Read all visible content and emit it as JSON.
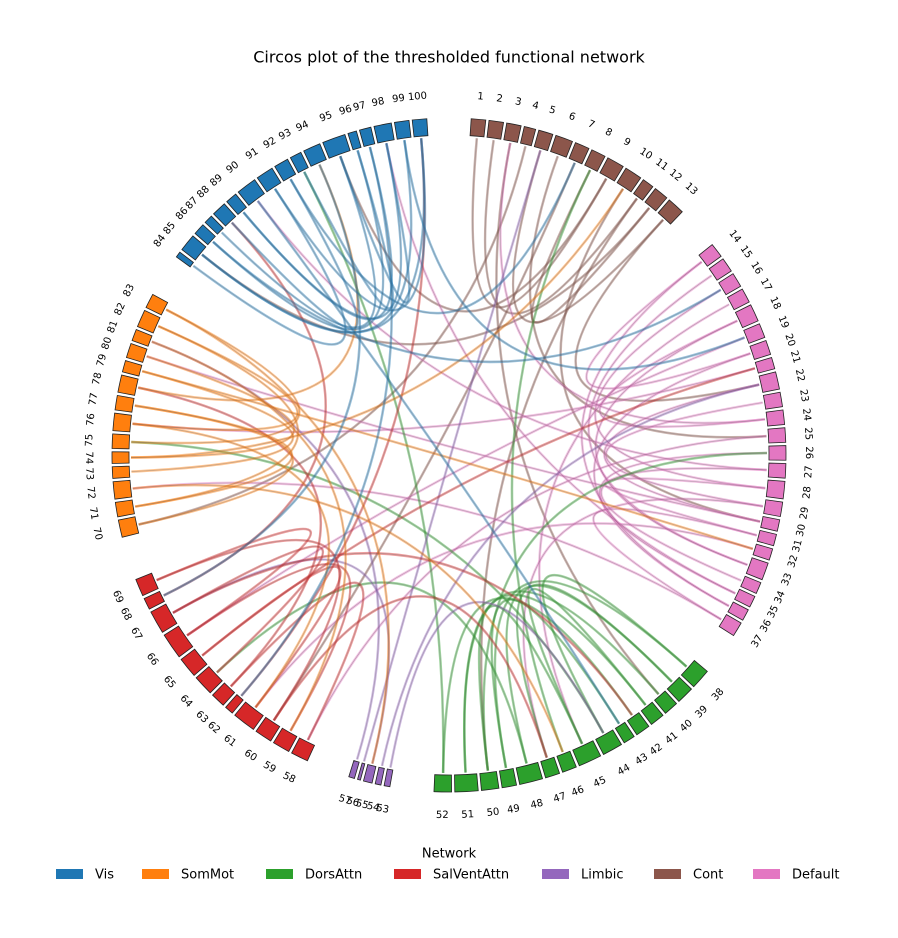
{
  "chart_data": {
    "type": "chord",
    "title": "Circos plot of the thresholded functional network",
    "legend_title": "Network",
    "networks": [
      {
        "name": "Vis",
        "color": "#1f77b4"
      },
      {
        "name": "SomMot",
        "color": "#ff7f0e"
      },
      {
        "name": "DorsAttn",
        "color": "#2ca02c"
      },
      {
        "name": "SalVentAttn",
        "color": "#d62728"
      },
      {
        "name": "Limbic",
        "color": "#9467bd"
      },
      {
        "name": "Cont",
        "color": "#8c564b"
      },
      {
        "name": "Default",
        "color": "#e377c2"
      }
    ],
    "nodes": [
      {
        "label": "1",
        "network": "Cont",
        "degree": 5
      },
      {
        "label": "2",
        "network": "Cont",
        "degree": 5
      },
      {
        "label": "3",
        "network": "Cont",
        "degree": 5
      },
      {
        "label": "4",
        "network": "Cont",
        "degree": 4
      },
      {
        "label": "5",
        "network": "Cont",
        "degree": 5
      },
      {
        "label": "6",
        "network": "Cont",
        "degree": 6
      },
      {
        "label": "7",
        "network": "Cont",
        "degree": 5
      },
      {
        "label": "8",
        "network": "Cont",
        "degree": 5
      },
      {
        "label": "9",
        "network": "Cont",
        "degree": 6
      },
      {
        "label": "10",
        "network": "Cont",
        "degree": 6
      },
      {
        "label": "11",
        "network": "Cont",
        "degree": 4
      },
      {
        "label": "12",
        "network": "Cont",
        "degree": 5
      },
      {
        "label": "13",
        "network": "Cont",
        "degree": 6
      },
      {
        "label": "14",
        "network": "Default",
        "degree": 5
      },
      {
        "label": "15",
        "network": "Default",
        "degree": 5
      },
      {
        "label": "16",
        "network": "Default",
        "degree": 5
      },
      {
        "label": "17",
        "network": "Default",
        "degree": 5
      },
      {
        "label": "18",
        "network": "Default",
        "degree": 6
      },
      {
        "label": "19",
        "network": "Default",
        "degree": 5
      },
      {
        "label": "20",
        "network": "Default",
        "degree": 5
      },
      {
        "label": "21",
        "network": "Default",
        "degree": 4
      },
      {
        "label": "22",
        "network": "Default",
        "degree": 6
      },
      {
        "label": "23",
        "network": "Default",
        "degree": 5
      },
      {
        "label": "24",
        "network": "Default",
        "degree": 5
      },
      {
        "label": "25",
        "network": "Default",
        "degree": 5
      },
      {
        "label": "26",
        "network": "Default",
        "degree": 5
      },
      {
        "label": "27",
        "network": "Default",
        "degree": 5
      },
      {
        "label": "28",
        "network": "Default",
        "degree": 6
      },
      {
        "label": "29",
        "network": "Default",
        "degree": 5
      },
      {
        "label": "30",
        "network": "Default",
        "degree": 4
      },
      {
        "label": "31",
        "network": "Default",
        "degree": 4
      },
      {
        "label": "32",
        "network": "Default",
        "degree": 4
      },
      {
        "label": "33",
        "network": "Default",
        "degree": 6
      },
      {
        "label": "34",
        "network": "Default",
        "degree": 4
      },
      {
        "label": "35",
        "network": "Default",
        "degree": 4
      },
      {
        "label": "36",
        "network": "Default",
        "degree": 4
      },
      {
        "label": "37",
        "network": "Default",
        "degree": 5
      },
      {
        "label": "38",
        "network": "DorsAttn",
        "degree": 7
      },
      {
        "label": "39",
        "network": "DorsAttn",
        "degree": 6
      },
      {
        "label": "40",
        "network": "DorsAttn",
        "degree": 5
      },
      {
        "label": "41",
        "network": "DorsAttn",
        "degree": 5
      },
      {
        "label": "42",
        "network": "DorsAttn",
        "degree": 5
      },
      {
        "label": "43",
        "network": "DorsAttn",
        "degree": 4
      },
      {
        "label": "44",
        "network": "DorsAttn",
        "degree": 7
      },
      {
        "label": "45",
        "network": "DorsAttn",
        "degree": 8
      },
      {
        "label": "46",
        "network": "DorsAttn",
        "degree": 5
      },
      {
        "label": "47",
        "network": "DorsAttn",
        "degree": 5
      },
      {
        "label": "48",
        "network": "DorsAttn",
        "degree": 8
      },
      {
        "label": "49",
        "network": "DorsAttn",
        "degree": 5
      },
      {
        "label": "50",
        "network": "DorsAttn",
        "degree": 6
      },
      {
        "label": "51",
        "network": "DorsAttn",
        "degree": 8
      },
      {
        "label": "52",
        "network": "DorsAttn",
        "degree": 6
      },
      {
        "label": "53",
        "network": "Limbic",
        "degree": 2
      },
      {
        "label": "54",
        "network": "Limbic",
        "degree": 2
      },
      {
        "label": "55",
        "network": "Limbic",
        "degree": 3
      },
      {
        "label": "56",
        "network": "Limbic",
        "degree": 1
      },
      {
        "label": "57",
        "network": "Limbic",
        "degree": 2
      },
      {
        "label": "58",
        "network": "SalVentAttn",
        "degree": 6
      },
      {
        "label": "59",
        "network": "SalVentAttn",
        "degree": 6
      },
      {
        "label": "60",
        "network": "SalVentAttn",
        "degree": 6
      },
      {
        "label": "61",
        "network": "SalVentAttn",
        "degree": 8
      },
      {
        "label": "62",
        "network": "SalVentAttn",
        "degree": 3
      },
      {
        "label": "63",
        "network": "SalVentAttn",
        "degree": 5
      },
      {
        "label": "64",
        "network": "SalVentAttn",
        "degree": 7
      },
      {
        "label": "65",
        "network": "SalVentAttn",
        "degree": 7
      },
      {
        "label": "66",
        "network": "SalVentAttn",
        "degree": 9
      },
      {
        "label": "67",
        "network": "SalVentAttn",
        "degree": 8
      },
      {
        "label": "68",
        "network": "SalVentAttn",
        "degree": 4
      },
      {
        "label": "69",
        "network": "SalVentAttn",
        "degree": 6
      },
      {
        "label": "70",
        "network": "SomMot",
        "degree": 6
      },
      {
        "label": "71",
        "network": "SomMot",
        "degree": 5
      },
      {
        "label": "72",
        "network": "SomMot",
        "degree": 6
      },
      {
        "label": "73",
        "network": "SomMot",
        "degree": 4
      },
      {
        "label": "74",
        "network": "SomMot",
        "degree": 4
      },
      {
        "label": "75",
        "network": "SomMot",
        "degree": 5
      },
      {
        "label": "76",
        "network": "SomMot",
        "degree": 6
      },
      {
        "label": "77",
        "network": "SomMot",
        "degree": 5
      },
      {
        "label": "78",
        "network": "SomMot",
        "degree": 6
      },
      {
        "label": "79",
        "network": "SomMot",
        "degree": 4
      },
      {
        "label": "80",
        "network": "SomMot",
        "degree": 5
      },
      {
        "label": "81",
        "network": "SomMot",
        "degree": 4
      },
      {
        "label": "82",
        "network": "SomMot",
        "degree": 6
      },
      {
        "label": "83",
        "network": "SomMot",
        "degree": 5
      },
      {
        "label": "84",
        "network": "Vis",
        "degree": 2
      },
      {
        "label": "85",
        "network": "Vis",
        "degree": 6
      },
      {
        "label": "86",
        "network": "Vis",
        "degree": 4
      },
      {
        "label": "87",
        "network": "Vis",
        "degree": 3
      },
      {
        "label": "88",
        "network": "Vis",
        "degree": 5
      },
      {
        "label": "89",
        "network": "Vis",
        "degree": 4
      },
      {
        "label": "90",
        "network": "Vis",
        "degree": 7
      },
      {
        "label": "91",
        "network": "Vis",
        "degree": 6
      },
      {
        "label": "92",
        "network": "Vis",
        "degree": 5
      },
      {
        "label": "93",
        "network": "Vis",
        "degree": 4
      },
      {
        "label": "94",
        "network": "Vis",
        "degree": 6
      },
      {
        "label": "95",
        "network": "Vis",
        "degree": 8
      },
      {
        "label": "96",
        "network": "Vis",
        "degree": 3
      },
      {
        "label": "97",
        "network": "Vis",
        "degree": 4
      },
      {
        "label": "98",
        "network": "Vis",
        "degree": 6
      },
      {
        "label": "99",
        "network": "Vis",
        "degree": 5
      },
      {
        "label": "100",
        "network": "Vis",
        "degree": 5
      }
    ],
    "links": [
      [
        1,
        9
      ],
      [
        2,
        11
      ],
      [
        3,
        40
      ],
      [
        4,
        70
      ],
      [
        5,
        13
      ],
      [
        6,
        25
      ],
      [
        7,
        60
      ],
      [
        8,
        12
      ],
      [
        9,
        95
      ],
      [
        10,
        30
      ],
      [
        11,
        50
      ],
      [
        12,
        85
      ],
      [
        13,
        22
      ],
      [
        14,
        20
      ],
      [
        15,
        33
      ],
      [
        16,
        28
      ],
      [
        17,
        45
      ],
      [
        18,
        24
      ],
      [
        19,
        66
      ],
      [
        20,
        36
      ],
      [
        21,
        76
      ],
      [
        22,
        30
      ],
      [
        23,
        29
      ],
      [
        24,
        3
      ],
      [
        25,
        58
      ],
      [
        26,
        35
      ],
      [
        27,
        90
      ],
      [
        28,
        31
      ],
      [
        29,
        47
      ],
      [
        30,
        80
      ],
      [
        31,
        37
      ],
      [
        32,
        61
      ],
      [
        33,
        18
      ],
      [
        34,
        27
      ],
      [
        35,
        98
      ],
      [
        36,
        14
      ],
      [
        37,
        72
      ],
      [
        38,
        44
      ],
      [
        39,
        48
      ],
      [
        40,
        51
      ],
      [
        41,
        45
      ],
      [
        42,
        52
      ],
      [
        43,
        49
      ],
      [
        44,
        75
      ],
      [
        45,
        50
      ],
      [
        46,
        8
      ],
      [
        47,
        39
      ],
      [
        48,
        64
      ],
      [
        49,
        38
      ],
      [
        50,
        26
      ],
      [
        51,
        41
      ],
      [
        52,
        93
      ],
      [
        53,
        44
      ],
      [
        54,
        22
      ],
      [
        55,
        67
      ],
      [
        56,
        5
      ],
      [
        57,
        81
      ],
      [
        58,
        63
      ],
      [
        59,
        66
      ],
      [
        60,
        47
      ],
      [
        61,
        65
      ],
      [
        62,
        100
      ],
      [
        63,
        78
      ],
      [
        64,
        67
      ],
      [
        65,
        21
      ],
      [
        66,
        69
      ],
      [
        67,
        42
      ],
      [
        68,
        88
      ],
      [
        69,
        60
      ],
      [
        70,
        77
      ],
      [
        71,
        82
      ],
      [
        72,
        46
      ],
      [
        73,
        79
      ],
      [
        74,
        10
      ],
      [
        75,
        83
      ],
      [
        76,
        61
      ],
      [
        77,
        71
      ],
      [
        78,
        94
      ],
      [
        79,
        32
      ],
      [
        80,
        74
      ],
      [
        81,
        59
      ],
      [
        82,
        76
      ],
      [
        83,
        55
      ],
      [
        84,
        91
      ],
      [
        85,
        99
      ],
      [
        86,
        16
      ],
      [
        87,
        95
      ],
      [
        88,
        92
      ],
      [
        89,
        97
      ],
      [
        90,
        43
      ],
      [
        91,
        100
      ],
      [
        92,
        7
      ],
      [
        93,
        96
      ],
      [
        94,
        68
      ],
      [
        95,
        98
      ],
      [
        96,
        86
      ],
      [
        97,
        62
      ],
      [
        98,
        89
      ],
      [
        99,
        19
      ],
      [
        100,
        85
      ]
    ]
  }
}
